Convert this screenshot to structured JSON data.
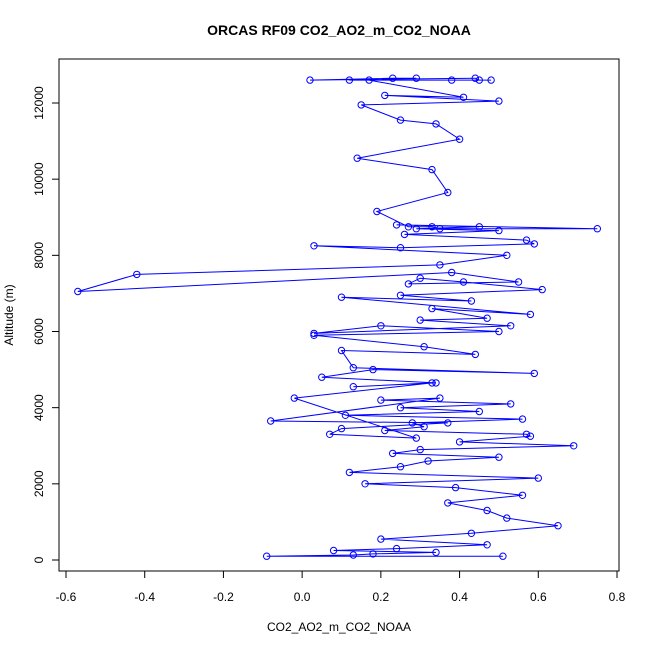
{
  "chart_data": {
    "type": "line",
    "title": "ORCAS RF09 CO2_AO2_m_CO2_NOAA",
    "xlabel": "CO2_AO2_m_CO2_NOAA",
    "ylabel": "Altitude (m)",
    "xlim": [
      -0.6,
      0.8
    ],
    "ylim": [
      0,
      12800
    ],
    "xticks": [
      "-0.6",
      "-0.4",
      "-0.2",
      "0.0",
      "0.2",
      "0.4",
      "0.6",
      "0.8"
    ],
    "yticks": [
      "0",
      "2000",
      "4000",
      "6000",
      "8000",
      "10000",
      "12000"
    ],
    "grid": false,
    "legend": "none",
    "series_color": "#0000ff",
    "markers": "open-circle",
    "series": [
      {
        "x": [
          0.51,
          -0.09,
          0.13,
          0.18,
          0.34,
          0.08,
          0.24,
          0.47,
          0.2,
          0.43,
          0.65,
          0.52,
          0.47,
          0.37,
          0.56,
          0.39,
          0.16,
          0.6,
          0.12,
          0.25,
          0.32,
          0.5,
          0.23,
          0.3,
          0.69,
          0.4,
          0.58,
          0.57,
          0.21,
          0.31,
          0.28,
          0.56,
          0.11,
          0.45,
          0.25,
          0.53,
          0.2,
          0.35,
          -0.08,
          0.37,
          0.1,
          0.07,
          0.29,
          -0.02,
          0.33,
          0.13,
          0.34,
          0.05,
          0.18,
          0.59,
          0.13,
          0.1,
          0.44,
          0.31,
          0.03,
          0.5,
          0.2,
          0.03,
          0.53,
          0.3,
          0.47,
          0.33,
          0.58,
          0.1,
          0.43,
          0.25,
          0.61,
          0.41,
          0.3,
          0.27,
          0.55,
          0.38,
          -0.57,
          -0.42,
          0.35,
          0.52,
          0.03,
          0.25,
          0.59,
          0.57,
          0.26,
          0.5,
          0.29,
          0.45,
          0.24,
          0.75,
          0.35,
          0.33,
          0.27,
          0.19,
          0.37,
          0.33,
          0.14,
          0.4,
          0.34,
          0.25,
          0.15,
          0.5,
          0.21,
          0.41,
          0.17,
          0.45,
          0.44,
          0.02,
          0.23,
          0.29,
          0.12,
          0.38,
          0.48
        ],
        "y": [
          100,
          100,
          130,
          160,
          200,
          250,
          300,
          400,
          550,
          700,
          900,
          1100,
          1300,
          1500,
          1700,
          1900,
          2000,
          2150,
          2300,
          2450,
          2600,
          2700,
          2800,
          2900,
          3000,
          3100,
          3250,
          3300,
          3400,
          3500,
          3600,
          3700,
          3800,
          3900,
          4000,
          4100,
          4200,
          4250,
          3650,
          3600,
          3450,
          3300,
          3200,
          4250,
          4650,
          4550,
          4650,
          4800,
          5000,
          4900,
          5050,
          5500,
          5400,
          5600,
          5900,
          6000,
          6150,
          5950,
          6150,
          6300,
          6350,
          6600,
          6450,
          6900,
          6800,
          6950,
          7100,
          7300,
          7400,
          7250,
          7300,
          7550,
          7050,
          7500,
          7750,
          8000,
          8250,
          8200,
          8300,
          8400,
          8550,
          8650,
          8700,
          8750,
          8800,
          8700,
          8700,
          8750,
          8750,
          9150,
          9650,
          10250,
          10550,
          11050,
          11450,
          11550,
          11950,
          12050,
          12200,
          12150,
          12600,
          12600,
          12650,
          12600,
          12650,
          12650,
          12600,
          12600,
          12600
        ]
      }
    ]
  }
}
